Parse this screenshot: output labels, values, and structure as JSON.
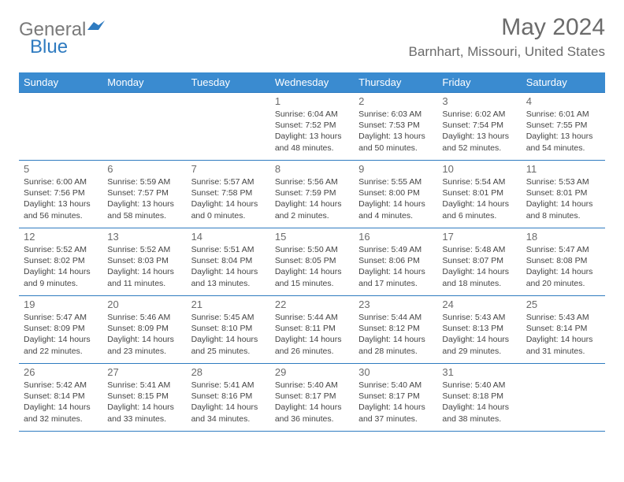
{
  "logo": {
    "text_general": "General",
    "text_blue": "Blue"
  },
  "title": "May 2024",
  "location": "Barnhart, Missouri, United States",
  "colors": {
    "header_bg": "#3a8bd0",
    "header_text": "#ffffff",
    "border": "#2f7bc0",
    "logo_gray": "#7a7a7a",
    "logo_blue": "#2f7bc0",
    "title_gray": "#6b6b6b",
    "body_text": "#444444",
    "background": "#ffffff"
  },
  "day_headers": [
    "Sunday",
    "Monday",
    "Tuesday",
    "Wednesday",
    "Thursday",
    "Friday",
    "Saturday"
  ],
  "weeks": [
    [
      null,
      null,
      null,
      {
        "n": "1",
        "sr": "6:04 AM",
        "ss": "7:52 PM",
        "dh": "13",
        "dm": "48"
      },
      {
        "n": "2",
        "sr": "6:03 AM",
        "ss": "7:53 PM",
        "dh": "13",
        "dm": "50"
      },
      {
        "n": "3",
        "sr": "6:02 AM",
        "ss": "7:54 PM",
        "dh": "13",
        "dm": "52"
      },
      {
        "n": "4",
        "sr": "6:01 AM",
        "ss": "7:55 PM",
        "dh": "13",
        "dm": "54"
      }
    ],
    [
      {
        "n": "5",
        "sr": "6:00 AM",
        "ss": "7:56 PM",
        "dh": "13",
        "dm": "56"
      },
      {
        "n": "6",
        "sr": "5:59 AM",
        "ss": "7:57 PM",
        "dh": "13",
        "dm": "58"
      },
      {
        "n": "7",
        "sr": "5:57 AM",
        "ss": "7:58 PM",
        "dh": "14",
        "dm": "0"
      },
      {
        "n": "8",
        "sr": "5:56 AM",
        "ss": "7:59 PM",
        "dh": "14",
        "dm": "2"
      },
      {
        "n": "9",
        "sr": "5:55 AM",
        "ss": "8:00 PM",
        "dh": "14",
        "dm": "4"
      },
      {
        "n": "10",
        "sr": "5:54 AM",
        "ss": "8:01 PM",
        "dh": "14",
        "dm": "6"
      },
      {
        "n": "11",
        "sr": "5:53 AM",
        "ss": "8:01 PM",
        "dh": "14",
        "dm": "8"
      }
    ],
    [
      {
        "n": "12",
        "sr": "5:52 AM",
        "ss": "8:02 PM",
        "dh": "14",
        "dm": "9"
      },
      {
        "n": "13",
        "sr": "5:52 AM",
        "ss": "8:03 PM",
        "dh": "14",
        "dm": "11"
      },
      {
        "n": "14",
        "sr": "5:51 AM",
        "ss": "8:04 PM",
        "dh": "14",
        "dm": "13"
      },
      {
        "n": "15",
        "sr": "5:50 AM",
        "ss": "8:05 PM",
        "dh": "14",
        "dm": "15"
      },
      {
        "n": "16",
        "sr": "5:49 AM",
        "ss": "8:06 PM",
        "dh": "14",
        "dm": "17"
      },
      {
        "n": "17",
        "sr": "5:48 AM",
        "ss": "8:07 PM",
        "dh": "14",
        "dm": "18"
      },
      {
        "n": "18",
        "sr": "5:47 AM",
        "ss": "8:08 PM",
        "dh": "14",
        "dm": "20"
      }
    ],
    [
      {
        "n": "19",
        "sr": "5:47 AM",
        "ss": "8:09 PM",
        "dh": "14",
        "dm": "22"
      },
      {
        "n": "20",
        "sr": "5:46 AM",
        "ss": "8:09 PM",
        "dh": "14",
        "dm": "23"
      },
      {
        "n": "21",
        "sr": "5:45 AM",
        "ss": "8:10 PM",
        "dh": "14",
        "dm": "25"
      },
      {
        "n": "22",
        "sr": "5:44 AM",
        "ss": "8:11 PM",
        "dh": "14",
        "dm": "26"
      },
      {
        "n": "23",
        "sr": "5:44 AM",
        "ss": "8:12 PM",
        "dh": "14",
        "dm": "28"
      },
      {
        "n": "24",
        "sr": "5:43 AM",
        "ss": "8:13 PM",
        "dh": "14",
        "dm": "29"
      },
      {
        "n": "25",
        "sr": "5:43 AM",
        "ss": "8:14 PM",
        "dh": "14",
        "dm": "31"
      }
    ],
    [
      {
        "n": "26",
        "sr": "5:42 AM",
        "ss": "8:14 PM",
        "dh": "14",
        "dm": "32"
      },
      {
        "n": "27",
        "sr": "5:41 AM",
        "ss": "8:15 PM",
        "dh": "14",
        "dm": "33"
      },
      {
        "n": "28",
        "sr": "5:41 AM",
        "ss": "8:16 PM",
        "dh": "14",
        "dm": "34"
      },
      {
        "n": "29",
        "sr": "5:40 AM",
        "ss": "8:17 PM",
        "dh": "14",
        "dm": "36"
      },
      {
        "n": "30",
        "sr": "5:40 AM",
        "ss": "8:17 PM",
        "dh": "14",
        "dm": "37"
      },
      {
        "n": "31",
        "sr": "5:40 AM",
        "ss": "8:18 PM",
        "dh": "14",
        "dm": "38"
      },
      null
    ]
  ],
  "labels": {
    "sunrise": "Sunrise: ",
    "sunset": "Sunset: ",
    "daylight_prefix": "Daylight: ",
    "hours": " hours",
    "and": "and ",
    "minutes": " minutes."
  }
}
